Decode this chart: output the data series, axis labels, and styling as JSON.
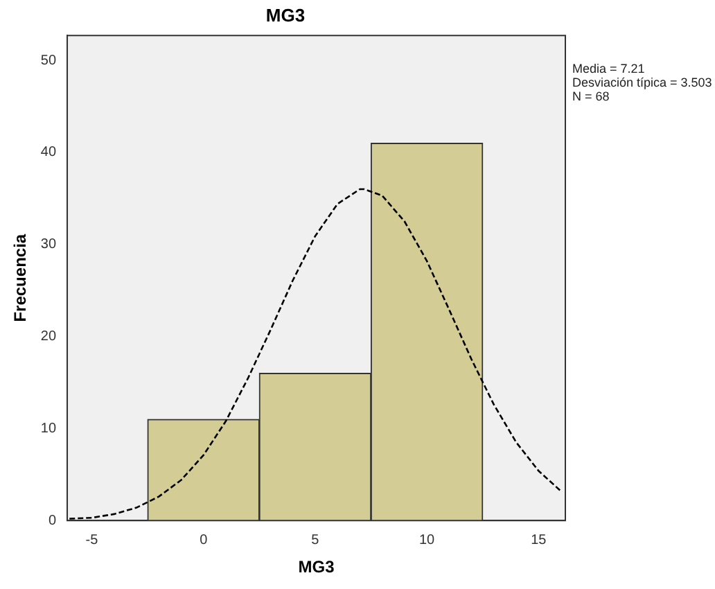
{
  "chart_data": {
    "type": "histogram",
    "title": "MG3",
    "xlabel": "MG3",
    "ylabel": "Frecuencia",
    "bins": [
      -2.5,
      2.5,
      7.5,
      12.5
    ],
    "values": [
      11,
      16,
      41
    ],
    "color": "#d3cc95",
    "series": [
      {
        "type": "line",
        "color": "#000000",
        "line_style": "dashed",
        "marker": "none",
        "x": [
          -6,
          -5,
          -4,
          -3,
          -2,
          -1,
          0,
          1,
          2,
          3,
          4,
          5,
          6,
          7,
          7.2,
          8,
          9,
          10,
          11,
          12,
          13,
          14,
          15,
          16
        ],
        "values": [
          0.2,
          0.3,
          0.7,
          1.4,
          2.6,
          4.4,
          7.1,
          10.8,
          15.5,
          20.7,
          26.1,
          30.9,
          34.4,
          36,
          36,
          35.3,
          32.5,
          28.2,
          22.9,
          17.5,
          12.6,
          8.5,
          5.4,
          3.2
        ]
      }
    ],
    "xlim": [
      -6.1,
      16.2
    ],
    "xticks": [
      -5,
      0,
      5,
      10,
      15
    ],
    "ylim": [
      0,
      52.7
    ],
    "yticks": [
      0,
      10,
      20,
      30,
      40,
      50
    ],
    "grid": false,
    "legend": false,
    "annotations": [
      "Media = 7.21",
      "Desviación típica = 3.503",
      "N = 68"
    ]
  }
}
